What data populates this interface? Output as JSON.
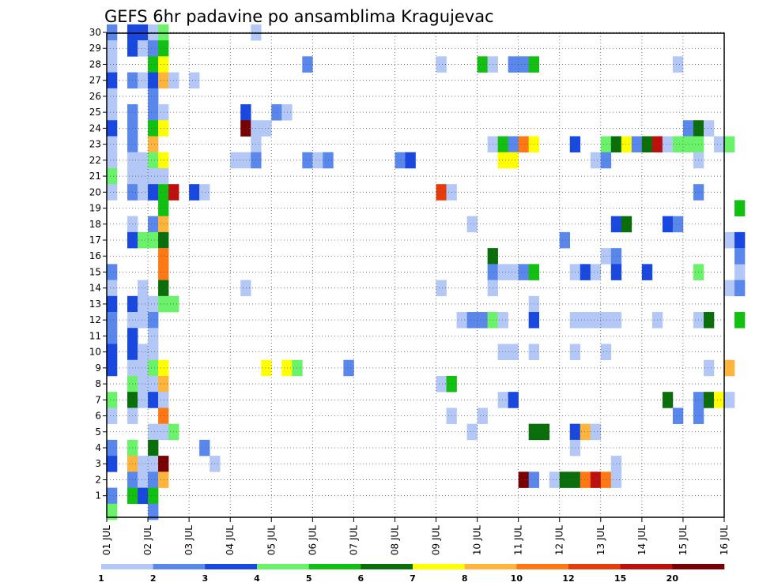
{
  "chart_data": {
    "type": "heatmap",
    "title": "GEFS 6hr padavine po ansamblima Kragujevac",
    "xlabel": "",
    "ylabel": "",
    "y_members": [
      1,
      30
    ],
    "y_ticks": [
      "1",
      "2",
      "3",
      "4",
      "5",
      "6",
      "7",
      "8",
      "9",
      "10",
      "11",
      "12",
      "13",
      "14",
      "15",
      "16",
      "17",
      "18",
      "19",
      "20",
      "21",
      "22",
      "23",
      "24",
      "25",
      "26",
      "27",
      "28",
      "29",
      "30"
    ],
    "x_ticks": [
      "01 JUL",
      "02 JUL",
      "03 JUL",
      "04 JUL",
      "05 JUL",
      "06 JUL",
      "07 JUL",
      "08 JUL",
      "09 JUL",
      "10 JUL",
      "11 JUL",
      "12 JUL",
      "13 JUL",
      "14 JUL",
      "15 JUL",
      "16 JUL"
    ],
    "x_range_days": [
      1,
      16
    ],
    "time_step_hours": 6,
    "grid": "dotted",
    "colorbar": {
      "labels": [
        "1",
        "2",
        "3",
        "4",
        "5",
        "6",
        "7",
        "8",
        "10",
        "12",
        "15",
        "20"
      ],
      "colors": [
        "#b4c8f8",
        "#5a87ec",
        "#1848e0",
        "#6af26a",
        "#12c012",
        "#0a6e0a",
        "#ffff00",
        "#ffb43c",
        "#ff7814",
        "#e63c0a",
        "#be0f0f",
        "#780000"
      ]
    },
    "cells": [
      [
        0,
        30,
        1
      ],
      [
        0,
        29,
        0
      ],
      [
        0,
        28,
        0
      ],
      [
        0,
        27,
        2
      ],
      [
        0,
        26,
        0
      ],
      [
        0,
        25,
        0
      ],
      [
        0,
        24,
        2
      ],
      [
        0,
        23,
        0
      ],
      [
        0,
        22,
        0
      ],
      [
        0,
        21,
        3
      ],
      [
        0,
        20,
        0
      ],
      [
        0,
        15,
        1
      ],
      [
        0,
        14,
        0
      ],
      [
        0,
        13,
        2
      ],
      [
        0,
        12,
        1
      ],
      [
        0,
        11,
        1
      ],
      [
        0,
        10,
        2
      ],
      [
        0,
        9,
        2
      ],
      [
        0,
        7,
        3
      ],
      [
        0,
        6,
        0
      ],
      [
        0,
        4,
        1
      ],
      [
        0,
        3,
        2
      ],
      [
        0,
        1,
        1
      ],
      [
        0,
        0,
        3
      ],
      [
        2,
        30,
        2
      ],
      [
        2,
        29,
        2
      ],
      [
        2,
        27,
        1
      ],
      [
        2,
        25,
        1
      ],
      [
        2,
        24,
        1
      ],
      [
        2,
        23,
        1
      ],
      [
        2,
        22,
        0
      ],
      [
        2,
        21,
        0
      ],
      [
        2,
        20,
        1
      ],
      [
        2,
        18,
        0
      ],
      [
        2,
        17,
        2
      ],
      [
        2,
        13,
        2
      ],
      [
        2,
        12,
        0
      ],
      [
        2,
        11,
        2
      ],
      [
        2,
        10,
        2
      ],
      [
        2,
        9,
        0
      ],
      [
        2,
        8,
        3
      ],
      [
        2,
        7,
        5
      ],
      [
        2,
        6,
        0
      ],
      [
        2,
        4,
        3
      ],
      [
        2,
        3,
        7
      ],
      [
        2,
        2,
        1
      ],
      [
        2,
        1,
        4
      ],
      [
        3,
        30,
        2
      ],
      [
        3,
        29,
        0
      ],
      [
        3,
        27,
        0
      ],
      [
        3,
        22,
        0
      ],
      [
        3,
        21,
        0
      ],
      [
        3,
        20,
        0
      ],
      [
        3,
        17,
        3
      ],
      [
        3,
        14,
        0
      ],
      [
        3,
        13,
        0
      ],
      [
        3,
        12,
        0
      ],
      [
        3,
        10,
        0
      ],
      [
        3,
        9,
        0
      ],
      [
        3,
        8,
        0
      ],
      [
        3,
        7,
        0
      ],
      [
        3,
        3,
        0
      ],
      [
        3,
        2,
        0
      ],
      [
        3,
        1,
        2
      ],
      [
        4,
        30,
        0
      ],
      [
        4,
        29,
        1
      ],
      [
        4,
        28,
        4
      ],
      [
        4,
        27,
        2
      ],
      [
        4,
        26,
        1
      ],
      [
        4,
        25,
        1
      ],
      [
        4,
        24,
        4
      ],
      [
        4,
        23,
        7
      ],
      [
        4,
        22,
        3
      ],
      [
        4,
        21,
        0
      ],
      [
        4,
        20,
        2
      ],
      [
        4,
        18,
        1
      ],
      [
        4,
        17,
        3
      ],
      [
        4,
        13,
        0
      ],
      [
        4,
        12,
        1
      ],
      [
        4,
        11,
        0
      ],
      [
        4,
        10,
        0
      ],
      [
        4,
        9,
        3
      ],
      [
        4,
        8,
        0
      ],
      [
        4,
        7,
        2
      ],
      [
        4,
        5,
        0
      ],
      [
        4,
        4,
        5
      ],
      [
        4,
        3,
        0
      ],
      [
        4,
        2,
        1
      ],
      [
        4,
        1,
        4
      ],
      [
        4,
        0,
        1
      ],
      [
        5,
        30,
        3
      ],
      [
        5,
        29,
        4
      ],
      [
        5,
        28,
        6
      ],
      [
        5,
        27,
        7
      ],
      [
        5,
        25,
        0
      ],
      [
        5,
        24,
        6
      ],
      [
        5,
        22,
        6
      ],
      [
        5,
        21,
        0
      ],
      [
        5,
        20,
        4
      ],
      [
        5,
        19,
        4
      ],
      [
        5,
        18,
        7
      ],
      [
        5,
        17,
        5
      ],
      [
        5,
        16,
        8
      ],
      [
        5,
        15,
        8
      ],
      [
        5,
        14,
        5
      ],
      [
        5,
        13,
        3
      ],
      [
        5,
        9,
        6
      ],
      [
        5,
        8,
        7
      ],
      [
        5,
        7,
        0
      ],
      [
        5,
        6,
        8
      ],
      [
        5,
        5,
        0
      ],
      [
        5,
        3,
        11
      ],
      [
        5,
        2,
        7
      ],
      [
        6,
        27,
        0
      ],
      [
        6,
        20,
        10
      ],
      [
        6,
        13,
        3
      ],
      [
        6,
        5,
        3
      ],
      [
        8,
        20,
        2
      ],
      [
        8,
        27,
        0
      ],
      [
        9,
        20,
        0
      ],
      [
        9,
        4,
        1
      ],
      [
        10,
        3,
        0
      ],
      [
        12,
        22,
        0
      ],
      [
        13,
        25,
        2
      ],
      [
        13,
        24,
        11
      ],
      [
        13,
        22,
        0
      ],
      [
        13,
        14,
        0
      ],
      [
        14,
        30,
        0
      ],
      [
        14,
        24,
        0
      ],
      [
        14,
        23,
        0
      ],
      [
        14,
        22,
        1
      ],
      [
        15,
        24,
        0
      ],
      [
        15,
        9,
        6
      ],
      [
        16,
        25,
        1
      ],
      [
        17,
        25,
        0
      ],
      [
        17,
        9,
        6
      ],
      [
        18,
        9,
        3
      ],
      [
        19,
        28,
        1
      ],
      [
        19,
        22,
        1
      ],
      [
        20,
        22,
        0
      ],
      [
        21,
        22,
        1
      ],
      [
        23,
        9,
        1
      ],
      [
        28,
        22,
        1
      ],
      [
        29,
        22,
        2
      ],
      [
        32,
        28,
        0
      ],
      [
        32,
        20,
        9
      ],
      [
        32,
        14,
        0
      ],
      [
        32,
        8,
        0
      ],
      [
        33,
        20,
        0
      ],
      [
        33,
        8,
        4
      ],
      [
        33,
        6,
        0
      ],
      [
        34,
        12,
        0
      ],
      [
        35,
        12,
        1
      ],
      [
        35,
        5,
        0
      ],
      [
        35,
        18,
        0
      ],
      [
        36,
        28,
        4
      ],
      [
        36,
        12,
        1
      ],
      [
        36,
        6,
        0
      ],
      [
        37,
        28,
        0
      ],
      [
        37,
        23,
        0
      ],
      [
        37,
        16,
        5
      ],
      [
        37,
        15,
        1
      ],
      [
        37,
        14,
        0
      ],
      [
        37,
        12,
        3
      ],
      [
        38,
        23,
        4
      ],
      [
        38,
        22,
        6
      ],
      [
        38,
        15,
        0
      ],
      [
        38,
        12,
        0
      ],
      [
        38,
        10,
        0
      ],
      [
        38,
        7,
        0
      ],
      [
        39,
        28,
        1
      ],
      [
        39,
        23,
        1
      ],
      [
        39,
        22,
        6
      ],
      [
        39,
        15,
        0
      ],
      [
        39,
        10,
        0
      ],
      [
        39,
        7,
        2
      ],
      [
        40,
        28,
        1
      ],
      [
        40,
        23,
        8
      ],
      [
        40,
        15,
        1
      ],
      [
        40,
        2,
        11
      ],
      [
        41,
        28,
        4
      ],
      [
        41,
        23,
        6
      ],
      [
        41,
        15,
        4
      ],
      [
        41,
        13,
        0
      ],
      [
        41,
        12,
        2
      ],
      [
        41,
        10,
        0
      ],
      [
        41,
        5,
        5
      ],
      [
        41,
        2,
        1
      ],
      [
        42,
        5,
        5
      ],
      [
        43,
        2,
        0
      ],
      [
        44,
        17,
        1
      ],
      [
        44,
        2,
        5
      ],
      [
        45,
        23,
        2
      ],
      [
        45,
        15,
        0
      ],
      [
        45,
        12,
        0
      ],
      [
        45,
        10,
        0
      ],
      [
        45,
        5,
        2
      ],
      [
        45,
        4,
        0
      ],
      [
        45,
        2,
        5
      ],
      [
        46,
        15,
        2
      ],
      [
        46,
        12,
        0
      ],
      [
        46,
        5,
        7
      ],
      [
        46,
        2,
        8
      ],
      [
        47,
        22,
        0
      ],
      [
        47,
        15,
        0
      ],
      [
        47,
        12,
        0
      ],
      [
        47,
        5,
        0
      ],
      [
        47,
        2,
        10
      ],
      [
        48,
        23,
        3
      ],
      [
        48,
        22,
        1
      ],
      [
        48,
        16,
        0
      ],
      [
        48,
        12,
        0
      ],
      [
        48,
        10,
        0
      ],
      [
        48,
        2,
        8
      ],
      [
        49,
        23,
        5
      ],
      [
        49,
        18,
        2
      ],
      [
        49,
        16,
        1
      ],
      [
        49,
        15,
        2
      ],
      [
        49,
        12,
        0
      ],
      [
        49,
        2,
        0
      ],
      [
        49,
        3,
        0
      ],
      [
        50,
        23,
        6
      ],
      [
        50,
        18,
        5
      ],
      [
        51,
        23,
        1
      ],
      [
        52,
        23,
        5
      ],
      [
        52,
        15,
        2
      ],
      [
        53,
        23,
        10
      ],
      [
        53,
        12,
        0
      ],
      [
        54,
        23,
        0
      ],
      [
        54,
        18,
        2
      ],
      [
        54,
        7,
        5
      ],
      [
        55,
        28,
        0
      ],
      [
        55,
        23,
        3
      ],
      [
        55,
        18,
        1
      ],
      [
        55,
        6,
        1
      ],
      [
        56,
        24,
        1
      ],
      [
        56,
        23,
        3
      ],
      [
        57,
        24,
        5
      ],
      [
        57,
        23,
        3
      ],
      [
        57,
        22,
        0
      ],
      [
        57,
        20,
        1
      ],
      [
        57,
        15,
        3
      ],
      [
        57,
        12,
        0
      ],
      [
        57,
        7,
        1
      ],
      [
        57,
        6,
        1
      ],
      [
        58,
        24,
        0
      ],
      [
        58,
        12,
        5
      ],
      [
        58,
        9,
        0
      ],
      [
        58,
        7,
        5
      ],
      [
        59,
        23,
        0
      ],
      [
        59,
        7,
        6
      ],
      [
        60,
        23,
        3
      ],
      [
        60,
        17,
        0
      ],
      [
        60,
        14,
        0
      ],
      [
        60,
        9,
        7
      ],
      [
        60,
        7,
        0
      ],
      [
        61,
        19,
        4
      ],
      [
        61,
        17,
        2
      ],
      [
        61,
        15,
        0
      ],
      [
        61,
        14,
        1
      ],
      [
        61,
        12,
        4
      ],
      [
        61,
        16,
        1
      ]
    ]
  }
}
